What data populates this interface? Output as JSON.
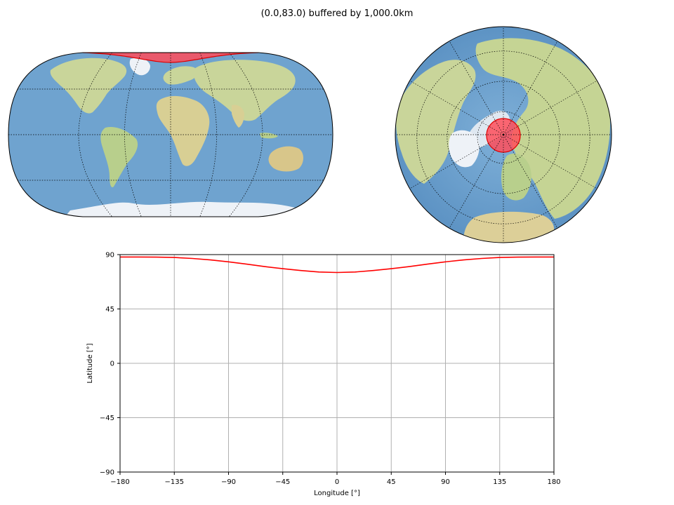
{
  "figure": {
    "title": "(0.0,83.0) buffered by 1,000.0km"
  },
  "colors": {
    "ocean": "#6fa3cf",
    "ocean_dark": "#5a8fc0",
    "land": "#d9dca8",
    "land_green": "#b7cf8e",
    "ice": "#eef2f7",
    "buffer_fill": "#ff4d5a",
    "buffer_edge": "#e00000",
    "grid": "#b0b0b0"
  },
  "maps": {
    "left": {
      "projection": "Robinson",
      "name": "robinson-map"
    },
    "right": {
      "projection": "Orthographic (north polar)",
      "name": "orthographic-map"
    }
  },
  "chart_data": {
    "type": "line",
    "title": "",
    "xlabel": "Longitude [°]",
    "ylabel": "Latitude [°]",
    "xlim": [
      -180,
      180
    ],
    "ylim": [
      -90,
      90
    ],
    "xticks": [
      "−180",
      "−135",
      "−90",
      "−45",
      "0",
      "45",
      "90",
      "135",
      "180"
    ],
    "xtick_values": [
      -180,
      -135,
      -90,
      -45,
      0,
      45,
      90,
      135,
      180
    ],
    "yticks": [
      "90",
      "45",
      "0",
      "−45",
      "−90"
    ],
    "ytick_values": [
      90,
      45,
      0,
      -45,
      -90
    ],
    "grid": true,
    "series": [
      {
        "color": "#ff0000",
        "x": [
          -180,
          -165,
          -150,
          -135,
          -120,
          -105,
          -90,
          -75,
          -60,
          -45,
          -30,
          -15,
          0,
          15,
          30,
          45,
          60,
          75,
          90,
          105,
          120,
          135,
          150,
          165,
          180
        ],
        "y": [
          88.0,
          88.0,
          87.9,
          87.6,
          86.8,
          85.6,
          84.0,
          82.1,
          80.1,
          78.3,
          76.8,
          75.6,
          75.2,
          75.6,
          76.8,
          78.3,
          80.1,
          82.1,
          84.0,
          85.6,
          86.8,
          87.6,
          87.9,
          88.0,
          88.0
        ]
      }
    ]
  }
}
